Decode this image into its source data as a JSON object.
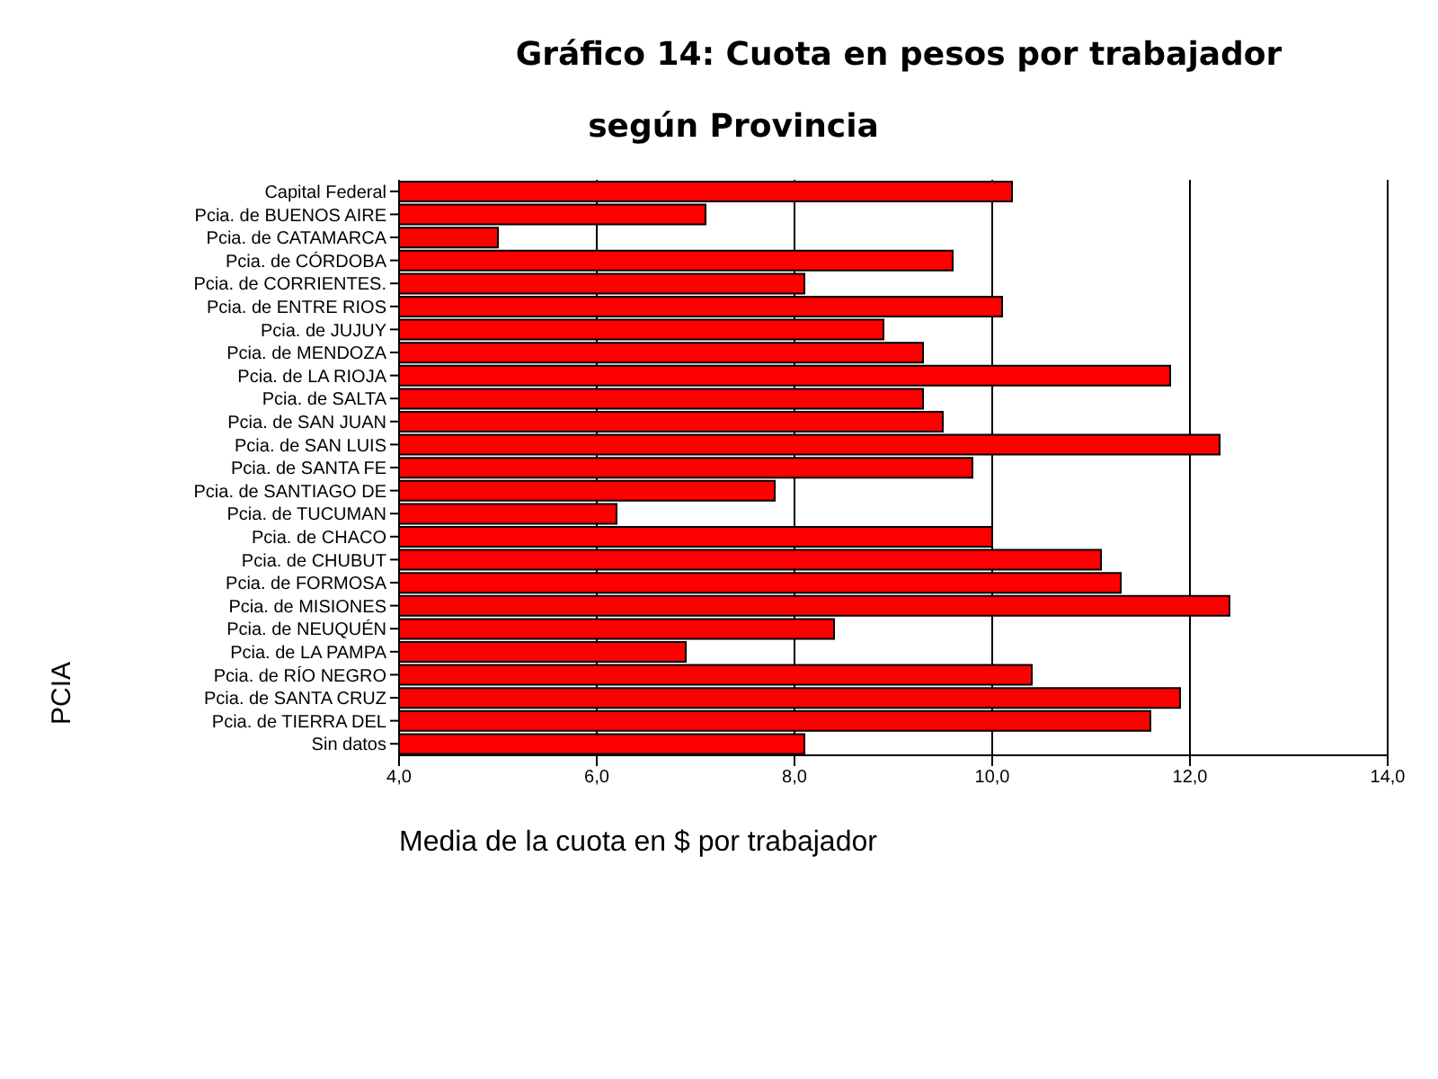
{
  "chart_data": {
    "type": "bar",
    "orientation": "horizontal",
    "title": "Gráfico 14: Cuota en pesos por trabajador",
    "subtitle": "según Provincia",
    "xlabel": "Media de la cuota en $ por trabajador",
    "ylabel": "PCIA",
    "categories": [
      "Capital Federal",
      "Pcia. de BUENOS AIRE",
      "Pcia. de CATAMARCA",
      "Pcia. de CÓRDOBA",
      "Pcia. de CORRIENTES.",
      "Pcia. de ENTRE RIOS",
      "Pcia. de JUJUY",
      "Pcia. de MENDOZA",
      "Pcia. de LA RIOJA",
      "Pcia. de SALTA",
      "Pcia. de SAN JUAN",
      "Pcia. de SAN LUIS",
      "Pcia. de SANTA FE",
      "Pcia. de SANTIAGO DE",
      "Pcia. de TUCUMAN",
      "Pcia. de CHACO",
      "Pcia. de CHUBUT",
      "Pcia. de FORMOSA",
      "Pcia. de MISIONES",
      "Pcia. de NEUQUÉN",
      "Pcia. de LA PAMPA",
      "Pcia. de RÍO NEGRO",
      "Pcia. de SANTA CRUZ",
      "Pcia. de TIERRA DEL",
      "Sin datos"
    ],
    "values": [
      10.2,
      7.1,
      5.0,
      9.6,
      8.1,
      10.1,
      8.9,
      9.3,
      11.8,
      9.3,
      9.5,
      12.3,
      9.8,
      7.8,
      6.2,
      10.0,
      11.1,
      11.3,
      12.4,
      8.4,
      6.9,
      10.4,
      11.9,
      11.6,
      8.1
    ],
    "color": "#ff0000",
    "xlim": [
      4,
      14
    ],
    "xticks": [
      {
        "value": 4,
        "label": "4,0"
      },
      {
        "value": 6,
        "label": "6,0"
      },
      {
        "value": 8,
        "label": "8,0"
      },
      {
        "value": 10,
        "label": "10,0"
      },
      {
        "value": 12,
        "label": "12,0"
      },
      {
        "value": 14,
        "label": "14,0"
      }
    ],
    "grid": "x",
    "legend": false
  }
}
